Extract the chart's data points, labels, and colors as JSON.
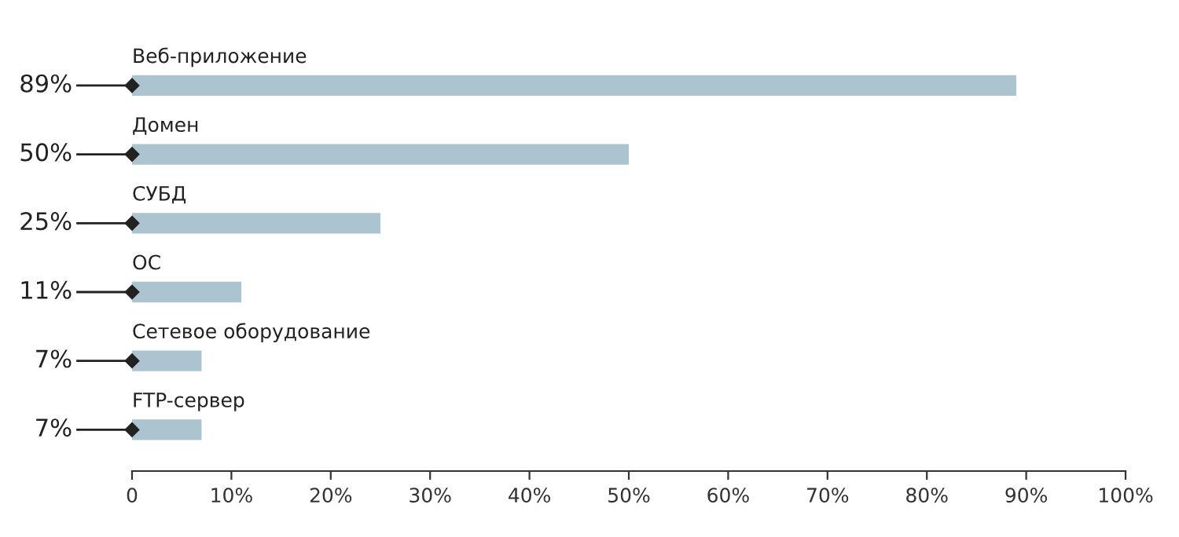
{
  "chart_data": {
    "type": "bar",
    "orientation": "horizontal",
    "color": "#abc4d0",
    "categories": [
      "Веб-приложение",
      "Домен",
      "СУБД",
      "ОС",
      "Сетевое оборудование",
      "FTP-сервер"
    ],
    "values": [
      89,
      50,
      25,
      11,
      7,
      7
    ],
    "value_labels": [
      "89%",
      "50%",
      "25%",
      "11%",
      "7%",
      "7%"
    ],
    "xlim": [
      0,
      100
    ],
    "xticks": [
      0,
      {
        "value": 10,
        "label": "10%"
      },
      {
        "value": 20,
        "label": "20%"
      },
      {
        "value": 30,
        "label": "30%"
      },
      {
        "value": 40,
        "label": "40%"
      },
      {
        "value": 50,
        "label": "50%"
      },
      {
        "value": 60,
        "label": "60%"
      },
      {
        "value": 70,
        "label": "70%"
      },
      {
        "value": 80,
        "label": "80%"
      },
      {
        "value": 90,
        "label": "90%"
      },
      {
        "value": 100,
        "label": "100%"
      }
    ],
    "grid": false
  }
}
